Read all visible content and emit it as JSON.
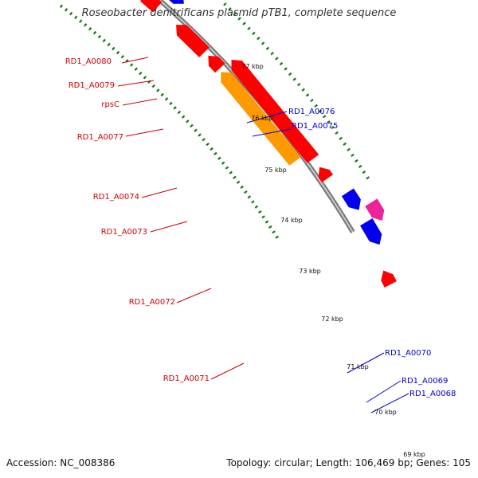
{
  "title": "Roseobacter denitrificans plasmid pTB1, complete sequence",
  "accession_text": "Accession: NC_008386",
  "summary_text": "Topology: circular; Length: 106,469 bp; Genes: 105",
  "colors": {
    "backbone": "#8a8a8a",
    "tick": "#117711",
    "reverse_gene": "#ff0000",
    "forward_gene": "#0000ee",
    "reverse_label": "#cc0000",
    "forward_label": "#0000cc",
    "rna": "#666666",
    "highlight_orange": "#ff9900",
    "highlight_pink": "#ee2299"
  },
  "kbp_ticks": [
    "69 kbp",
    "70 kbp",
    "71 kbp",
    "72 kbp",
    "73 kbp",
    "74 kbp",
    "75 kbp",
    "76 kbp",
    "77 kbp"
  ],
  "genes": [
    {
      "label": "RD1_A0080",
      "strand": "reverse",
      "color": "red"
    },
    {
      "label": "RD1_A0079",
      "strand": "reverse",
      "color": "grey"
    },
    {
      "label": "rpsC",
      "strand": "reverse",
      "color": "red"
    },
    {
      "label": "RD1_A0077",
      "strand": "reverse",
      "color": "red"
    },
    {
      "label": "RD1_A0076",
      "strand": "forward",
      "color": "blue"
    },
    {
      "label": "RD1_A0075",
      "strand": "forward",
      "color": "blue"
    },
    {
      "label": "RD1_A0074",
      "strand": "reverse",
      "color": "red"
    },
    {
      "label": "RD1_A0073",
      "strand": "reverse",
      "color": "red"
    },
    {
      "label": "RD1_A0072",
      "strand": "reverse",
      "color": "orange"
    },
    {
      "label": "RD1_A0071",
      "strand": "reverse",
      "color": "red"
    },
    {
      "label": "RD1_A0070",
      "strand": "forward",
      "color": "blue"
    },
    {
      "label": "RD1_A0069",
      "strand": "forward",
      "color": "pink"
    },
    {
      "label": "RD1_A0068",
      "strand": "forward",
      "color": "blue"
    }
  ]
}
